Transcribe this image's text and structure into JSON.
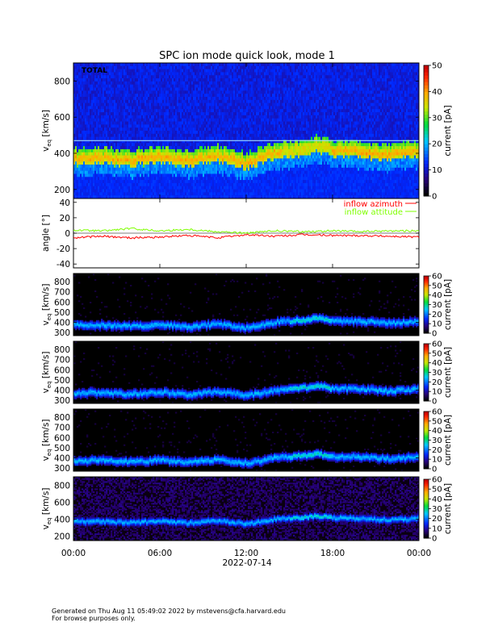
{
  "title": "SPC ion mode quick look, mode 1",
  "footer": {
    "line1": "Generated on Thu Aug 11 05:49:02 2022 by mstevens@cfa.harvard.edu",
    "line2": "For browse purposes only."
  },
  "x_axis": {
    "ticks": [
      "00:00",
      "06:00",
      "12:00",
      "18:00",
      "00:00"
    ],
    "tick_hours": [
      0,
      6,
      12,
      18,
      24
    ],
    "date_label": "2022-07-14"
  },
  "chart_data": [
    {
      "type": "heatmap",
      "panel_label": "TOTAL",
      "ylabel": "v",
      "ylabel_sub": "eq",
      "ylabel_unit": "[km/s]",
      "ylim": [
        150,
        900
      ],
      "yticks": [
        200,
        400,
        600,
        800
      ],
      "xlim_hours": [
        0,
        24
      ],
      "colorbar": {
        "label": "current [pA]",
        "range": [
          0,
          50
        ],
        "ticks": [
          0,
          10,
          20,
          30,
          40,
          50
        ],
        "palette": "rainbow"
      },
      "background": "blue",
      "peak_speed_kms": {
        "hours": [
          0,
          2,
          4,
          6,
          8,
          10,
          12,
          14,
          16,
          17,
          18,
          20,
          22,
          24
        ],
        "values": [
          370,
          375,
          360,
          380,
          355,
          385,
          345,
          400,
          420,
          440,
          415,
          410,
          390,
          410
        ]
      }
    },
    {
      "type": "line",
      "ylabel": "angle [°]",
      "ylim": [
        -45,
        45
      ],
      "yticks": [
        -40,
        -20,
        0,
        20,
        40
      ],
      "series": [
        {
          "name": "inflow azimuth",
          "color": "#ff0000",
          "hours": [
            0,
            2,
            4,
            6,
            8,
            10,
            12,
            14,
            16,
            18,
            20,
            22,
            24
          ],
          "values": [
            -6,
            -4,
            -6,
            -5,
            -3,
            -6,
            -2,
            -4,
            -2,
            -3,
            -3,
            -4,
            -5
          ]
        },
        {
          "name": "inflow attitude",
          "color": "#7fff00",
          "hours": [
            0,
            2,
            4,
            6,
            8,
            10,
            12,
            14,
            16,
            18,
            20,
            22,
            24
          ],
          "values": [
            4,
            3,
            6,
            3,
            5,
            2,
            0,
            3,
            2,
            3,
            2,
            3,
            3
          ]
        }
      ]
    },
    {
      "type": "heatmap",
      "panel_label": "",
      "ylabel": "v",
      "ylabel_sub": "eq",
      "ylabel_unit": "[km/s]",
      "ylim": [
        270,
        880
      ],
      "yticks": [
        300,
        400,
        500,
        600,
        700,
        800
      ],
      "colorbar": {
        "label": "current [pA]",
        "range": [
          0,
          60
        ],
        "ticks": [
          0,
          10,
          20,
          30,
          40,
          50,
          60
        ],
        "palette": "rainbow"
      },
      "background": "black",
      "peak_speed_kms": {
        "hours": [
          0,
          2,
          4,
          6,
          8,
          10,
          12,
          14,
          16,
          17,
          18,
          20,
          22,
          24
        ],
        "values": [
          370,
          375,
          360,
          380,
          355,
          385,
          345,
          400,
          420,
          440,
          415,
          410,
          390,
          410
        ]
      }
    },
    {
      "type": "heatmap",
      "panel_label": "",
      "ylabel": "v",
      "ylabel_sub": "eq",
      "ylabel_unit": "[km/s]",
      "ylim": [
        270,
        880
      ],
      "yticks": [
        300,
        400,
        500,
        600,
        700,
        800
      ],
      "colorbar": {
        "label": "current [pA]",
        "range": [
          0,
          60
        ],
        "ticks": [
          0,
          10,
          20,
          30,
          40,
          50,
          60
        ],
        "palette": "rainbow"
      },
      "background": "black",
      "peak_speed_kms": {
        "hours": [
          0,
          2,
          4,
          6,
          8,
          10,
          12,
          14,
          16,
          17,
          18,
          20,
          22,
          24
        ],
        "values": [
          370,
          375,
          360,
          380,
          355,
          385,
          345,
          400,
          420,
          440,
          415,
          410,
          390,
          410
        ]
      }
    },
    {
      "type": "heatmap",
      "panel_label": "",
      "ylabel": "v",
      "ylabel_sub": "eq",
      "ylabel_unit": "[km/s]",
      "ylim": [
        270,
        880
      ],
      "yticks": [
        300,
        400,
        500,
        600,
        700,
        800
      ],
      "colorbar": {
        "label": "current [pA]",
        "range": [
          0,
          60
        ],
        "ticks": [
          0,
          10,
          20,
          30,
          40,
          50,
          60
        ],
        "palette": "rainbow"
      },
      "background": "black",
      "peak_speed_kms": {
        "hours": [
          0,
          2,
          4,
          6,
          8,
          10,
          12,
          14,
          16,
          17,
          18,
          20,
          22,
          24
        ],
        "values": [
          370,
          375,
          360,
          380,
          355,
          385,
          345,
          400,
          420,
          440,
          415,
          410,
          390,
          410
        ]
      }
    },
    {
      "type": "heatmap",
      "panel_label": "",
      "ylabel": "v",
      "ylabel_sub": "eq",
      "ylabel_unit": "[km/s]",
      "ylim": [
        150,
        900
      ],
      "yticks": [
        200,
        400,
        600,
        800
      ],
      "colorbar": {
        "label": "current [pA]",
        "range": [
          0,
          60
        ],
        "ticks": [
          0,
          10,
          20,
          30,
          40,
          50,
          60
        ],
        "palette": "rainbow"
      },
      "background": "black-purple",
      "peak_speed_kms": {
        "hours": [
          0,
          2,
          4,
          6,
          8,
          10,
          12,
          14,
          16,
          17,
          18,
          20,
          22,
          24
        ],
        "values": [
          370,
          375,
          360,
          380,
          355,
          385,
          345,
          400,
          420,
          440,
          415,
          410,
          390,
          410
        ]
      }
    }
  ]
}
